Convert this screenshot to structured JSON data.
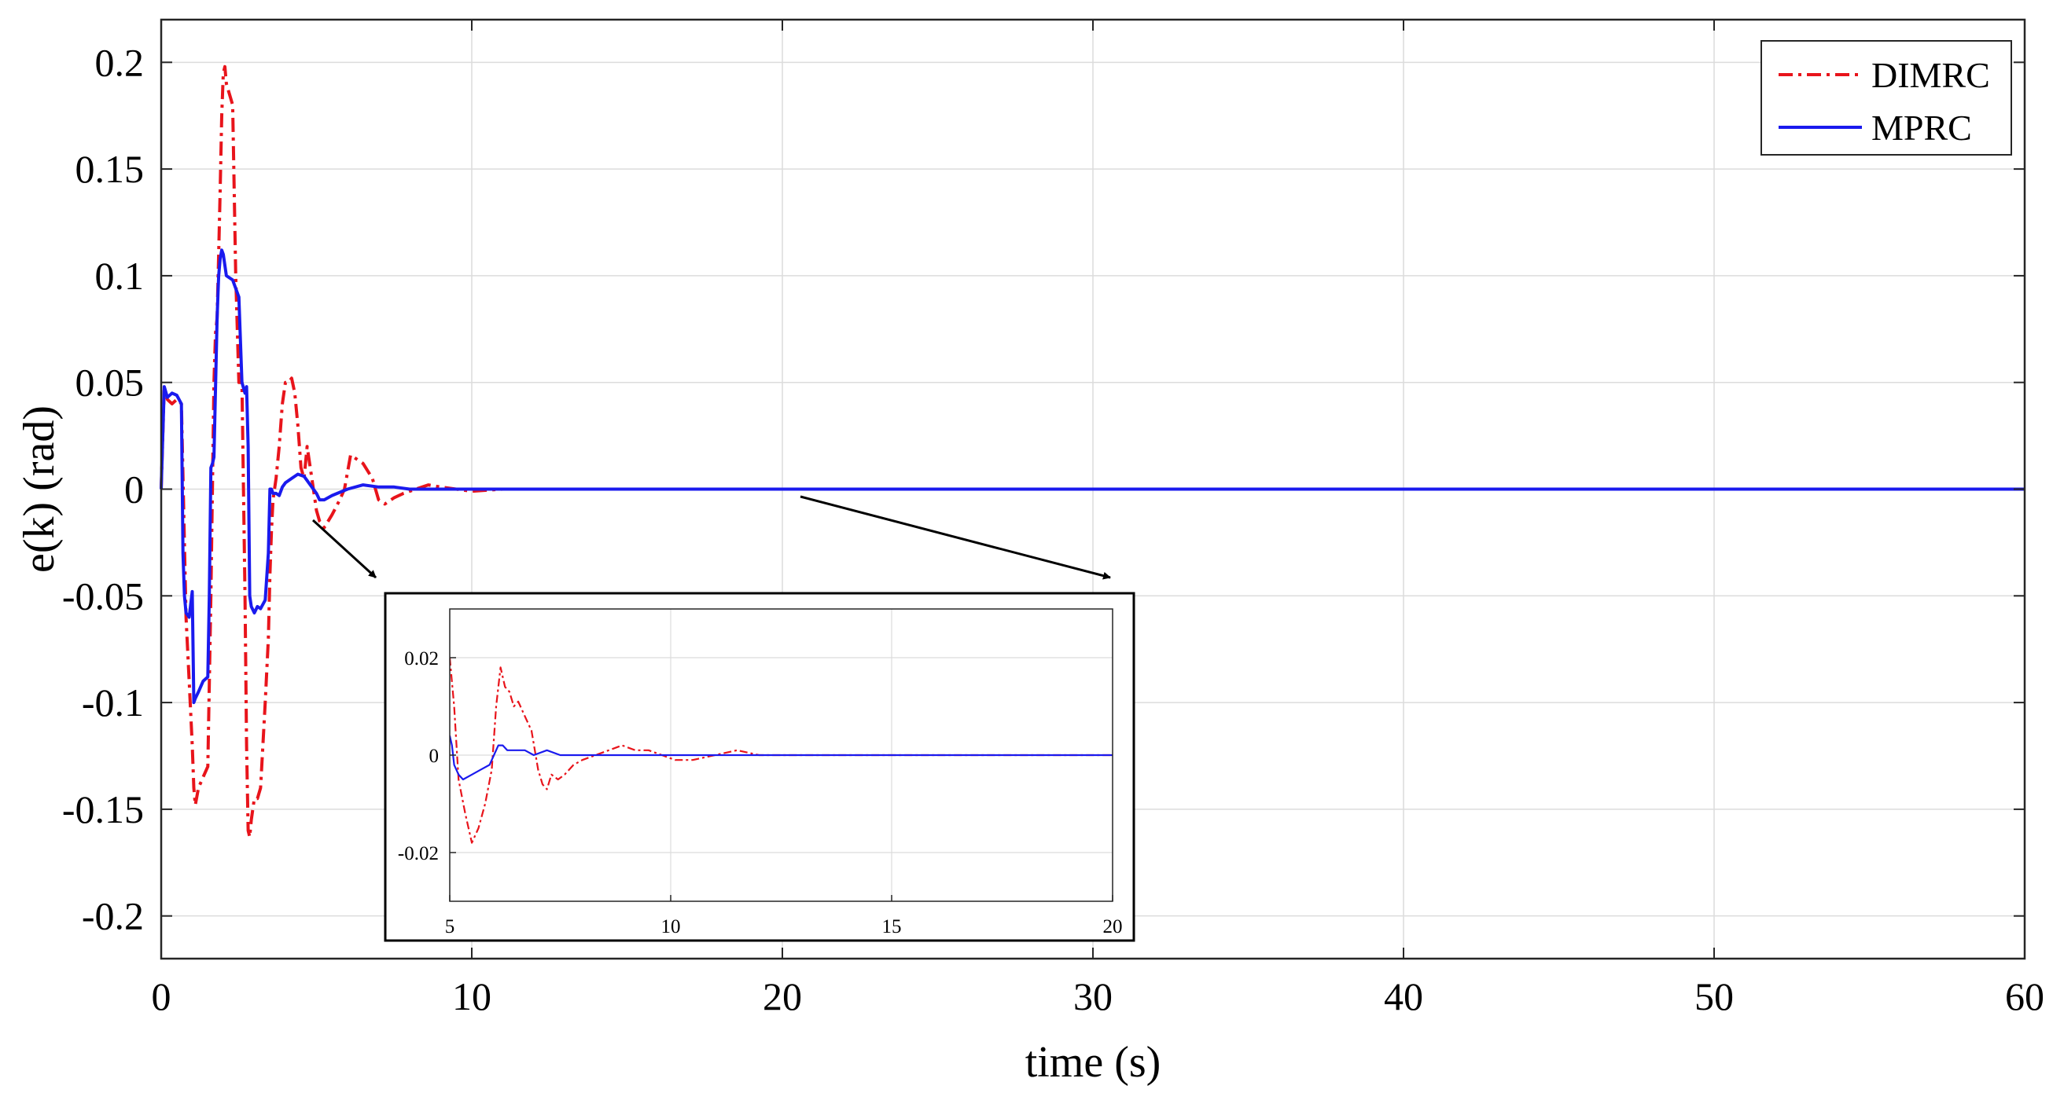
{
  "chart_data": {
    "type": "line",
    "xlabel": "time (s)",
    "ylabel": "e(k) (rad)",
    "xlim": [
      0,
      60
    ],
    "ylim": [
      -0.22,
      0.22
    ],
    "xticks": [
      0,
      10,
      20,
      30,
      40,
      50,
      60
    ],
    "xtick_labels": [
      "0",
      "10",
      "20",
      "30",
      "40",
      "50",
      "60"
    ],
    "yticks": [
      0.2,
      0.15,
      0.1,
      0.05,
      0,
      -0.05,
      -0.1,
      -0.15,
      -0.2
    ],
    "ytick_labels": [
      "0.2",
      "0.15",
      "0.1",
      "0.05",
      "0",
      "-0.05",
      "-0.1",
      "-0.15",
      "-0.2"
    ],
    "grid": true,
    "legend_position": "top-right",
    "series": [
      {
        "name": "DIMRC",
        "color": "#e8141b",
        "style": "dash-dot",
        "x": [
          0,
          0.1,
          0.2,
          0.35,
          0.5,
          0.65,
          0.8,
          0.9,
          1.0,
          1.05,
          1.1,
          1.2,
          1.35,
          1.5,
          1.6,
          1.7,
          1.75,
          1.8,
          1.85,
          1.9,
          1.95,
          2.0,
          2.05,
          2.1,
          2.2,
          2.3,
          2.4,
          2.5,
          2.6,
          2.7,
          2.75,
          2.8,
          2.85,
          2.9,
          2.95,
          3.0,
          3.1,
          3.2,
          3.35,
          3.45,
          3.5,
          3.55,
          3.6,
          3.7,
          3.8,
          3.9,
          4.0,
          4.1,
          4.2,
          4.3,
          4.4,
          4.5,
          4.6,
          4.7,
          4.8,
          4.9,
          5.0,
          5.1,
          5.25,
          5.5,
          5.75,
          5.9,
          6.0,
          6.1,
          6.3,
          6.5,
          6.8,
          7.0,
          7.2,
          7.5,
          7.8,
          8.2,
          8.6,
          9.0,
          9.5,
          10,
          11,
          12,
          15,
          20,
          25,
          30,
          35,
          40,
          45,
          50,
          55,
          60
        ],
        "y": [
          0,
          0.048,
          0.042,
          0.04,
          0.042,
          0.04,
          -0.06,
          -0.09,
          -0.12,
          -0.14,
          -0.148,
          -0.14,
          -0.135,
          -0.13,
          -0.05,
          0.05,
          0.073,
          0.08,
          0.11,
          0.14,
          0.175,
          0.195,
          0.198,
          0.19,
          0.185,
          0.18,
          0.1,
          0.05,
          0.05,
          -0.05,
          -0.12,
          -0.16,
          -0.163,
          -0.155,
          -0.15,
          -0.145,
          -0.145,
          -0.14,
          -0.1,
          -0.07,
          -0.04,
          -0.02,
          -0.005,
          0.005,
          0.02,
          0.04,
          0.05,
          0.05,
          0.052,
          0.045,
          0.03,
          0.01,
          0.005,
          0.02,
          0.01,
          0.0,
          -0.01,
          -0.015,
          -0.018,
          -0.012,
          -0.005,
          0.0,
          0.008,
          0.016,
          0.014,
          0.012,
          0.005,
          -0.005,
          -0.007,
          -0.004,
          -0.002,
          0.0,
          0.002,
          0.001,
          0.0,
          -0.001,
          0.0,
          0.0,
          0.0,
          0.0,
          0.0,
          0.0,
          0.0,
          0.0,
          0.0,
          0.0,
          0.0,
          0.0
        ]
      },
      {
        "name": "MPRC",
        "color": "#1a1aee",
        "style": "solid",
        "x": [
          0,
          0.1,
          0.2,
          0.35,
          0.5,
          0.65,
          0.7,
          0.75,
          0.8,
          0.9,
          1.0,
          1.05,
          1.1,
          1.2,
          1.35,
          1.5,
          1.55,
          1.6,
          1.65,
          1.7,
          1.8,
          1.85,
          1.9,
          1.95,
          2.0,
          2.1,
          2.3,
          2.5,
          2.6,
          2.7,
          2.75,
          2.8,
          2.85,
          2.9,
          3.0,
          3.1,
          3.2,
          3.35,
          3.45,
          3.5,
          3.55,
          3.6,
          3.7,
          3.8,
          3.9,
          4.0,
          4.2,
          4.4,
          4.6,
          4.8,
          5.0,
          5.1,
          5.25,
          5.5,
          6.0,
          6.5,
          7.0,
          7.5,
          8.0,
          9.0,
          10,
          12,
          15,
          20,
          25,
          30,
          35,
          40,
          45,
          50,
          55,
          60
        ],
        "y": [
          0,
          0.048,
          0.043,
          0.045,
          0.044,
          0.04,
          -0.03,
          -0.05,
          -0.058,
          -0.06,
          -0.048,
          -0.1,
          -0.098,
          -0.095,
          -0.09,
          -0.088,
          -0.05,
          0.01,
          0.012,
          0.015,
          0.08,
          0.1,
          0.108,
          0.112,
          0.11,
          0.1,
          0.098,
          0.09,
          0.05,
          0.045,
          0.048,
          0.02,
          -0.05,
          -0.055,
          -0.058,
          -0.055,
          -0.056,
          -0.052,
          -0.03,
          0.0,
          0.0,
          -0.002,
          -0.002,
          -0.003,
          0.001,
          0.003,
          0.005,
          0.007,
          0.006,
          0.002,
          -0.002,
          -0.005,
          -0.005,
          -0.003,
          0.0,
          0.002,
          0.001,
          0.001,
          0.0,
          0.0,
          0.0,
          0.0,
          0.0,
          0.0,
          0.0,
          0.0,
          0.0,
          0.0,
          0.0,
          0.0,
          0.0,
          0.0
        ]
      }
    ],
    "inset": {
      "type": "line",
      "xlim": [
        5,
        20
      ],
      "ylim": [
        -0.03,
        0.03
      ],
      "xticks": [
        5,
        10,
        15,
        20
      ],
      "xtick_labels": [
        "5",
        "10",
        "15",
        "20"
      ],
      "yticks": [
        0.02,
        0,
        -0.02
      ],
      "ytick_labels": [
        "0.02",
        "0",
        "-0.02"
      ],
      "grid": true,
      "series": [
        {
          "name": "DIMRC",
          "x": [
            5,
            5.1,
            5.2,
            5.35,
            5.5,
            5.65,
            5.8,
            5.95,
            6.05,
            6.15,
            6.25,
            6.35,
            6.45,
            6.55,
            6.7,
            6.85,
            7.0,
            7.1,
            7.2,
            7.3,
            7.45,
            7.6,
            7.8,
            8.0,
            8.3,
            8.6,
            8.9,
            9.2,
            9.5,
            9.8,
            10.1,
            10.5,
            11,
            11.5,
            12,
            13,
            14,
            15,
            16,
            17,
            18,
            19,
            20
          ],
          "y": [
            0.02,
            0.01,
            -0.005,
            -0.012,
            -0.018,
            -0.015,
            -0.01,
            -0.003,
            0.01,
            0.018,
            0.014,
            0.013,
            0.01,
            0.011,
            0.008,
            0.005,
            -0.003,
            -0.006,
            -0.007,
            -0.004,
            -0.005,
            -0.004,
            -0.002,
            -0.001,
            0.0,
            0.001,
            0.002,
            0.001,
            0.001,
            0.0,
            -0.001,
            -0.001,
            0.0,
            0.001,
            0.0,
            0.0,
            0.0,
            0.0,
            0.0,
            0.0,
            0.0,
            0.0,
            0.0
          ]
        },
        {
          "name": "MPRC",
          "x": [
            5,
            5.05,
            5.1,
            5.2,
            5.3,
            5.5,
            5.7,
            5.9,
            6.0,
            6.1,
            6.2,
            6.3,
            6.5,
            6.7,
            6.9,
            7.2,
            7.5,
            8.0,
            8.5,
            9.0,
            10,
            11,
            12,
            14,
            16,
            18,
            20
          ],
          "y": [
            0.004,
            0.002,
            -0.002,
            -0.004,
            -0.005,
            -0.004,
            -0.003,
            -0.002,
            0.0,
            0.002,
            0.002,
            0.001,
            0.001,
            0.001,
            0.0,
            0.001,
            0.0,
            0.0,
            0.0,
            0.0,
            0.0,
            0.0,
            0.0,
            0.0,
            0.0,
            0.0,
            0.0
          ]
        }
      ]
    }
  }
}
